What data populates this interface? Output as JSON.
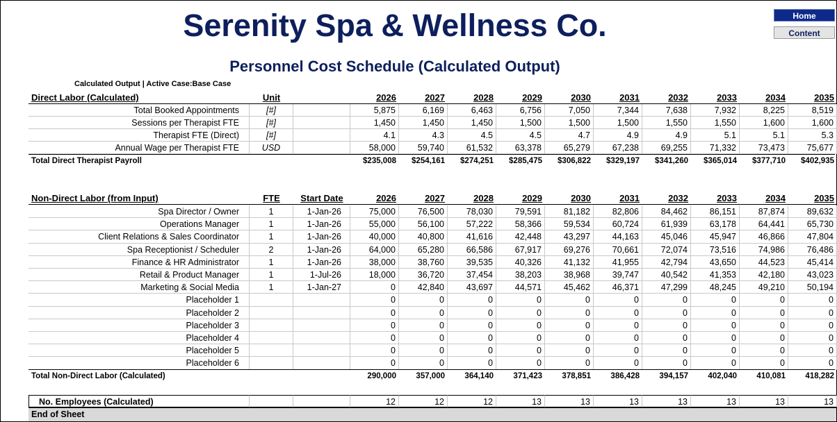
{
  "header": {
    "title": "Serenity Spa & Wellness Co.",
    "subtitle": "Personnel Cost Schedule (Calculated Output)",
    "caption": "Calculated Output | Active Case:Base Case",
    "buttons": [
      "Home",
      "Content"
    ]
  },
  "direct": {
    "headers": [
      "Direct Labor (Calculated)",
      "Unit",
      "2026",
      "2027",
      "2028",
      "2029",
      "2030",
      "2031",
      "2032",
      "2033",
      "2034",
      "2035"
    ],
    "rows": [
      [
        "Total Booked Appointments",
        "[#]",
        "5,875",
        "6,169",
        "6,463",
        "6,756",
        "7,050",
        "7,344",
        "7,638",
        "7,932",
        "8,225",
        "8,519"
      ],
      [
        "Sessions per Therapist FTE",
        "[#]",
        "1,450",
        "1,450",
        "1,450",
        "1,500",
        "1,500",
        "1,500",
        "1,550",
        "1,550",
        "1,600",
        "1,600"
      ],
      [
        "Therapist FTE (Direct)",
        "[#]",
        "4.1",
        "4.3",
        "4.5",
        "4.5",
        "4.7",
        "4.9",
        "4.9",
        "5.1",
        "5.1",
        "5.3"
      ],
      [
        "Annual Wage per Therapist FTE",
        "USD",
        "58,000",
        "59,740",
        "61,532",
        "63,378",
        "65,279",
        "67,238",
        "69,255",
        "71,332",
        "73,473",
        "75,677"
      ]
    ],
    "total": [
      "Total Direct Therapist Payroll",
      "$235,008",
      "$254,161",
      "$274,251",
      "$285,475",
      "$306,822",
      "$329,197",
      "$341,260",
      "$365,014",
      "$377,710",
      "$402,935"
    ]
  },
  "non_direct": {
    "headers": [
      "Non-Direct Labor (from Input)",
      "FTE",
      "Start Date",
      "2026",
      "2027",
      "2028",
      "2029",
      "2030",
      "2031",
      "2032",
      "2033",
      "2034",
      "2035"
    ],
    "rows": [
      [
        "Spa Director / Owner",
        "1",
        "1-Jan-26",
        "75,000",
        "76,500",
        "78,030",
        "79,591",
        "81,182",
        "82,806",
        "84,462",
        "86,151",
        "87,874",
        "89,632"
      ],
      [
        "Operations Manager",
        "1",
        "1-Jan-26",
        "55,000",
        "56,100",
        "57,222",
        "58,366",
        "59,534",
        "60,724",
        "61,939",
        "63,178",
        "64,441",
        "65,730"
      ],
      [
        "Client Relations & Sales Coordinator",
        "1",
        "1-Jan-26",
        "40,000",
        "40,800",
        "41,616",
        "42,448",
        "43,297",
        "44,163",
        "45,046",
        "45,947",
        "46,866",
        "47,804"
      ],
      [
        "Spa Receptionist / Scheduler",
        "2",
        "1-Jan-26",
        "64,000",
        "65,280",
        "66,586",
        "67,917",
        "69,276",
        "70,661",
        "72,074",
        "73,516",
        "74,986",
        "76,486"
      ],
      [
        "Finance & HR Administrator",
        "1",
        "1-Jan-26",
        "38,000",
        "38,760",
        "39,535",
        "40,326",
        "41,132",
        "41,955",
        "42,794",
        "43,650",
        "44,523",
        "45,414"
      ],
      [
        "Retail & Product Manager",
        "1",
        "1-Jul-26",
        "18,000",
        "36,720",
        "37,454",
        "38,203",
        "38,968",
        "39,747",
        "40,542",
        "41,353",
        "42,180",
        "43,023"
      ],
      [
        "Marketing & Social Media",
        "1",
        "1-Jan-27",
        "0",
        "42,840",
        "43,697",
        "44,571",
        "45,462",
        "46,371",
        "47,299",
        "48,245",
        "49,210",
        "50,194"
      ],
      [
        "Placeholder 1",
        null,
        null,
        "0",
        "0",
        "0",
        "0",
        "0",
        "0",
        "0",
        "0",
        "0",
        "0"
      ],
      [
        "Placeholder 2",
        null,
        null,
        "0",
        "0",
        "0",
        "0",
        "0",
        "0",
        "0",
        "0",
        "0",
        "0"
      ],
      [
        "Placeholder 3",
        null,
        null,
        "0",
        "0",
        "0",
        "0",
        "0",
        "0",
        "0",
        "0",
        "0",
        "0"
      ],
      [
        "Placeholder 4",
        null,
        null,
        "0",
        "0",
        "0",
        "0",
        "0",
        "0",
        "0",
        "0",
        "0",
        "0"
      ],
      [
        "Placeholder 5",
        null,
        null,
        "0",
        "0",
        "0",
        "0",
        "0",
        "0",
        "0",
        "0",
        "0",
        "0"
      ],
      [
        "Placeholder 6",
        null,
        null,
        "0",
        "0",
        "0",
        "0",
        "0",
        "0",
        "0",
        "0",
        "0",
        "0"
      ]
    ],
    "total": [
      "Total Non-Direct Labor (Calculated)",
      "290,000",
      "357,000",
      "364,140",
      "371,423",
      "378,851",
      "386,428",
      "394,157",
      "402,040",
      "410,081",
      "418,282"
    ]
  },
  "employees": [
    "No. Employees (Calculated)",
    "12",
    "12",
    "12",
    "13",
    "13",
    "13",
    "13",
    "13",
    "13",
    "13"
  ],
  "footer": "End of Sheet"
}
